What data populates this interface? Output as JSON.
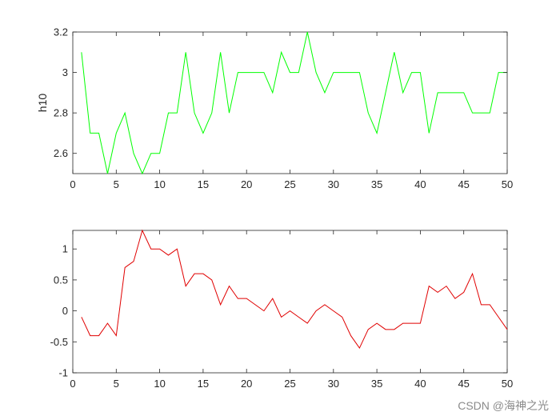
{
  "chart_data": [
    {
      "type": "line",
      "title": "",
      "xlabel": "",
      "ylabel": "h10",
      "xlim": [
        0,
        50
      ],
      "ylim": [
        2.5,
        3.2
      ],
      "xticks": [
        0,
        5,
        10,
        15,
        20,
        25,
        30,
        35,
        40,
        45,
        50
      ],
      "yticks": [
        2.6,
        2.8,
        3,
        3.2
      ],
      "xtick_labels": [
        "0",
        "5",
        "10",
        "15",
        "20",
        "25",
        "30",
        "35",
        "40",
        "45",
        "50"
      ],
      "ytick_labels": [
        "2.6",
        "2.8",
        "3",
        "3.2"
      ],
      "grid": false,
      "series": [
        {
          "color": "#00ff00",
          "x": [
            1,
            2,
            3,
            4,
            5,
            6,
            7,
            8,
            9,
            10,
            11,
            12,
            13,
            14,
            15,
            16,
            17,
            18,
            19,
            20,
            21,
            22,
            23,
            24,
            25,
            26,
            27,
            28,
            29,
            30,
            31,
            32,
            33,
            34,
            35,
            36,
            37,
            38,
            39,
            40,
            41,
            42,
            43,
            44,
            45,
            46,
            47,
            48,
            49,
            50
          ],
          "values": [
            3.1,
            2.7,
            2.7,
            2.5,
            2.7,
            2.8,
            2.6,
            2.5,
            2.6,
            2.6,
            2.8,
            2.8,
            3.1,
            2.8,
            2.7,
            2.8,
            3.1,
            2.8,
            3.0,
            3.0,
            3.0,
            3.0,
            2.9,
            3.1,
            3.0,
            3.0,
            3.2,
            3.0,
            2.9,
            3.0,
            3.0,
            3.0,
            3.0,
            2.8,
            2.7,
            2.9,
            3.1,
            2.9,
            3.0,
            3.0,
            2.7,
            2.9,
            2.9,
            2.9,
            2.9,
            2.8,
            2.8,
            2.8,
            3.0,
            3.0
          ]
        }
      ]
    },
    {
      "type": "line",
      "title": "",
      "xlabel": "",
      "ylabel": "",
      "xlim": [
        0,
        50
      ],
      "ylim": [
        -1,
        1.3
      ],
      "xticks": [
        0,
        5,
        10,
        15,
        20,
        25,
        30,
        35,
        40,
        45,
        50
      ],
      "yticks": [
        -1,
        -0.5,
        0,
        0.5,
        1
      ],
      "xtick_labels": [
        "0",
        "5",
        "10",
        "15",
        "20",
        "25",
        "30",
        "35",
        "40",
        "45",
        "50"
      ],
      "ytick_labels": [
        "-1",
        "-0.5",
        "0",
        "0.5",
        "1"
      ],
      "grid": false,
      "series": [
        {
          "color": "#e00000",
          "x": [
            1,
            2,
            3,
            4,
            5,
            6,
            7,
            8,
            9,
            10,
            11,
            12,
            13,
            14,
            15,
            16,
            17,
            18,
            19,
            20,
            21,
            22,
            23,
            24,
            25,
            26,
            27,
            28,
            29,
            30,
            31,
            32,
            33,
            34,
            35,
            36,
            37,
            38,
            39,
            40,
            41,
            42,
            43,
            44,
            45,
            46,
            47,
            48,
            49,
            50
          ],
          "values": [
            -0.1,
            -0.4,
            -0.4,
            -0.2,
            -0.4,
            0.7,
            0.8,
            1.3,
            1.0,
            1.0,
            0.9,
            1.0,
            0.4,
            0.6,
            0.6,
            0.5,
            0.1,
            0.4,
            0.2,
            0.2,
            0.1,
            0.0,
            0.2,
            -0.1,
            0.0,
            -0.1,
            -0.2,
            0.0,
            0.1,
            0.0,
            -0.1,
            -0.4,
            -0.6,
            -0.3,
            -0.2,
            -0.3,
            -0.3,
            -0.2,
            -0.2,
            -0.2,
            0.4,
            0.3,
            0.4,
            0.2,
            0.3,
            0.6,
            0.1,
            0.1,
            -0.1,
            -0.3
          ]
        }
      ]
    }
  ],
  "watermark": "CSDN @海神之光"
}
